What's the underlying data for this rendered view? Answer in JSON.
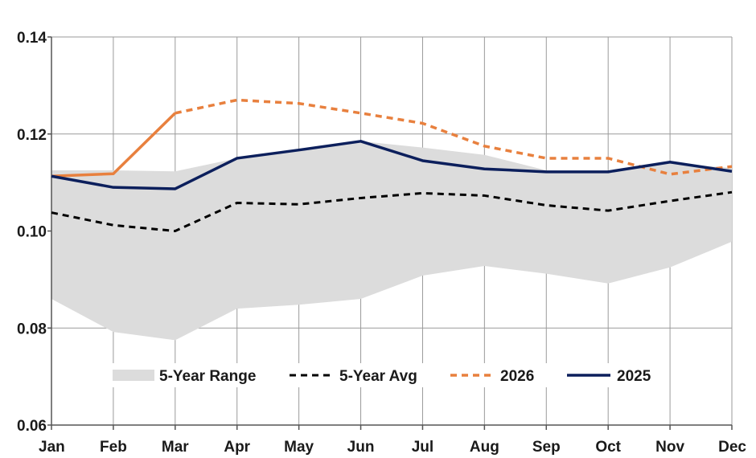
{
  "chart_data": {
    "type": "line",
    "categories": [
      "Jan",
      "Feb",
      "Mar",
      "Apr",
      "May",
      "Jun",
      "Jul",
      "Aug",
      "Sep",
      "Oct",
      "Nov",
      "Dec"
    ],
    "y_ticks": [
      "0.06",
      "0.08",
      "0.10",
      "0.12",
      "0.14"
    ],
    "ylim": [
      0.06,
      0.14
    ],
    "grid": true,
    "legend_position": "bottom-center",
    "range": {
      "name": "5-Year Range",
      "color": "#dcdcdc",
      "low": [
        0.086,
        0.0792,
        0.0775,
        0.084,
        0.0848,
        0.086,
        0.0908,
        0.0928,
        0.0912,
        0.0892,
        0.0925,
        0.0978
      ],
      "high": [
        0.1125,
        0.1125,
        0.1123,
        0.115,
        0.1168,
        0.1185,
        0.1172,
        0.1157,
        0.1125,
        0.1122,
        0.114,
        0.113
      ]
    },
    "series": [
      {
        "name": "5-Year Avg",
        "color": "#000000",
        "dash": "dashed",
        "values": [
          0.1038,
          0.1012,
          0.1,
          0.1058,
          0.1055,
          0.1068,
          0.1078,
          0.1073,
          0.1053,
          0.1042,
          0.1062,
          0.108
        ]
      },
      {
        "name": "2026",
        "color": "#e8803e",
        "dash": "mixed",
        "solid_until_index": 2,
        "values": [
          0.1113,
          0.1118,
          0.1243,
          0.127,
          0.1263,
          0.1243,
          0.1222,
          0.1175,
          0.115,
          0.115,
          0.1117,
          0.1133
        ]
      },
      {
        "name": "2025",
        "color": "#0c1f5c",
        "dash": "solid",
        "values": [
          0.1113,
          0.109,
          0.1087,
          0.115,
          0.1167,
          0.1185,
          0.1145,
          0.1128,
          0.1122,
          0.1122,
          0.1142,
          0.1123
        ]
      }
    ]
  }
}
